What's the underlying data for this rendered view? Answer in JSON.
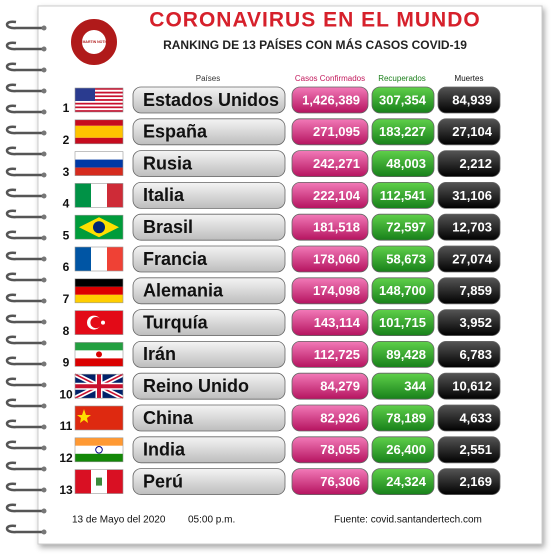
{
  "header": {
    "logo_text": "SAN MARTIN NOTICIAS",
    "title": "CORONAVIRUS EN EL MUNDO",
    "subtitle": "RANKING DE 13 PAÍSES CON MÁS CASOS COVID-19"
  },
  "table": {
    "columns": [
      "Países",
      "Casos Confirmados",
      "Recuperados",
      "Muertes"
    ],
    "rows": [
      [
        1,
        "Estados Unidos",
        "1,426,389",
        "307,354",
        "84,939"
      ],
      [
        2,
        "España",
        "271,095",
        "183,227",
        "27,104"
      ],
      [
        3,
        "Rusia",
        "242,271",
        "48,003",
        "2,212"
      ],
      [
        4,
        "Italia",
        "222,104",
        "112,541",
        "31,106"
      ],
      [
        5,
        "Brasil",
        "181,518",
        "72,597",
        "12,703"
      ],
      [
        6,
        "Francia",
        "178,060",
        "58,673",
        "27,074"
      ],
      [
        7,
        "Alemania",
        "174,098",
        "148,700",
        "7,859"
      ],
      [
        8,
        "Turquía",
        "143,114",
        "101,715",
        "3,952"
      ],
      [
        9,
        "Irán",
        "112,725",
        "89,428",
        "6,783"
      ],
      [
        10,
        "Reino Unido",
        "84,279",
        "344",
        "10,612"
      ],
      [
        11,
        "China",
        "82,926",
        "78,189",
        "4,633"
      ],
      [
        12,
        "India",
        "78,055",
        "26,400",
        "2,551"
      ],
      [
        13,
        "Perú",
        "76,306",
        "24,324",
        "2,169"
      ]
    ]
  },
  "footer": {
    "date": "13 de Mayo del 2020",
    "time": "05:00 p.m.",
    "source": "Fuente: covid.santandertech.com"
  }
}
